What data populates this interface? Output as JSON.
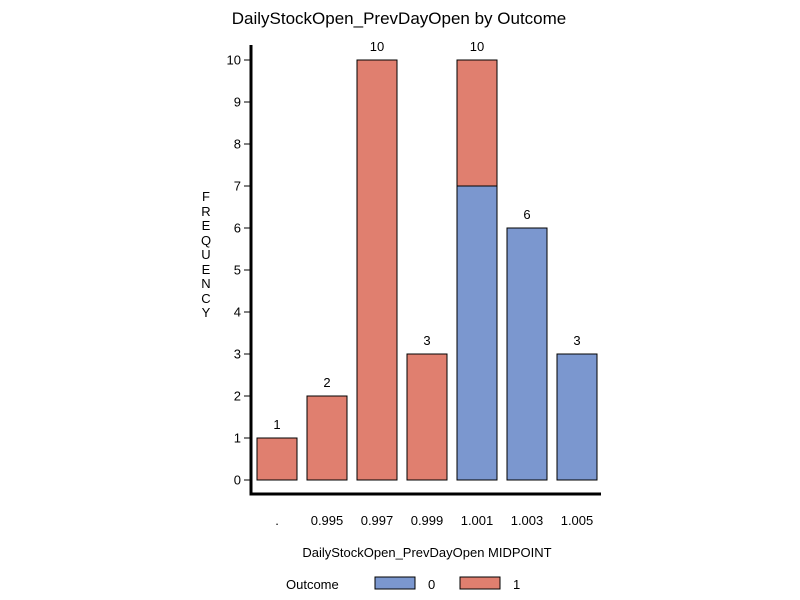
{
  "chart_data": {
    "type": "bar",
    "stacked": true,
    "title": "DailyStockOpen_PrevDayOpen by Outcome",
    "xlabel": "DailyStockOpen_PrevDayOpen MIDPOINT",
    "ylabel": "FREQUENCY",
    "categories": [
      ".",
      "0.995",
      "0.997",
      "0.999",
      "1.001",
      "1.003",
      "1.005"
    ],
    "series": [
      {
        "name": "0",
        "color": "#7b97cf",
        "values": [
          0,
          0,
          0,
          0,
          7,
          6,
          3
        ]
      },
      {
        "name": "1",
        "color": "#e07f6f",
        "values": [
          1,
          2,
          10,
          3,
          3,
          0,
          0
        ]
      }
    ],
    "totals": [
      1,
      2,
      10,
      3,
      10,
      6,
      3
    ],
    "ylim": [
      0,
      10
    ],
    "yticks": [
      0,
      1,
      2,
      3,
      4,
      5,
      6,
      7,
      8,
      9,
      10
    ],
    "legend": {
      "title": "Outcome",
      "position": "bottom"
    },
    "grid": false
  }
}
